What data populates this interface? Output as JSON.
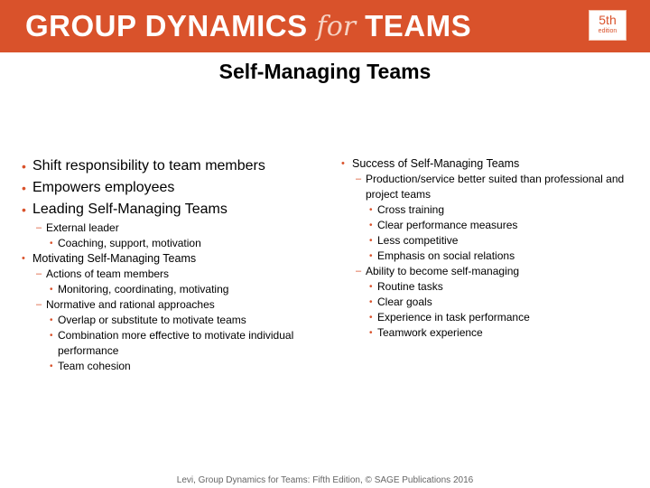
{
  "banner": {
    "title_part1": "GROUP DYNAMICS",
    "title_for": "for",
    "title_part2": "TEAMS",
    "edition_number": "5th",
    "edition_word": "edition",
    "color": "#d9522b"
  },
  "slide": {
    "title": "Self-Managing Teams",
    "bullet_color": "#d9522b",
    "left_column": [
      {
        "level": 1,
        "text": "Shift responsibility to team members"
      },
      {
        "level": 1,
        "text": "Empowers employees"
      },
      {
        "level": 1,
        "text": "Leading Self-Managing Teams"
      },
      {
        "level": 2,
        "text": "External leader"
      },
      {
        "level": 3,
        "text": "Coaching, support, motivation"
      },
      {
        "level": 1,
        "text": "Motivating Self-Managing Teams"
      },
      {
        "level": 2,
        "text": "Actions of team members"
      },
      {
        "level": 3,
        "text": "Monitoring, coordinating, motivating"
      },
      {
        "level": 2,
        "text": "Normative and rational approaches"
      },
      {
        "level": 3,
        "text": "Overlap or substitute to motivate teams"
      },
      {
        "level": 3,
        "text": "Combination more effective to motivate individual performance"
      },
      {
        "level": 3,
        "text": "Team cohesion"
      }
    ],
    "right_column": [
      {
        "level": 1,
        "text": "Success of Self-Managing Teams"
      },
      {
        "level": 2,
        "text": "Production/service better suited than professional and project  teams"
      },
      {
        "level": 3,
        "text": "Cross training"
      },
      {
        "level": 3,
        "text": "Clear performance measures"
      },
      {
        "level": 3,
        "text": "Less competitive"
      },
      {
        "level": 3,
        "text": "Emphasis on social relations"
      },
      {
        "level": 2,
        "text": "Ability to become self-managing"
      },
      {
        "level": 3,
        "text": "Routine tasks"
      },
      {
        "level": 3,
        "text": "Clear goals"
      },
      {
        "level": 3,
        "text": "Experience in task performance"
      },
      {
        "level": 3,
        "text": "Teamwork experience"
      }
    ]
  },
  "footer": {
    "text": "Levi, Group Dynamics for Teams: Fifth Edition, © SAGE Publications 2016"
  }
}
